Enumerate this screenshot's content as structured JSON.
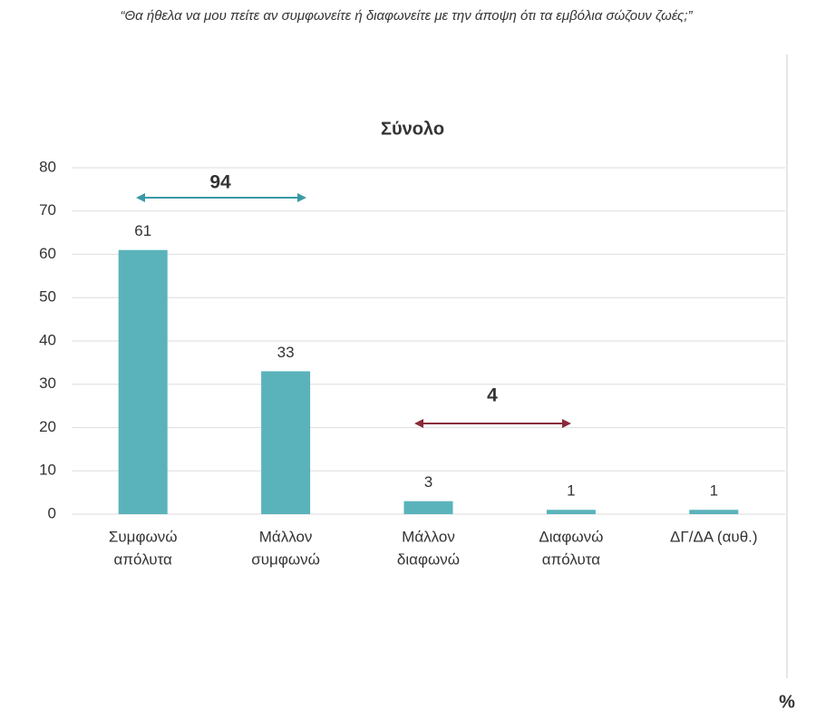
{
  "chart_data": {
    "type": "bar",
    "subtitle": "“Θα ήθελα να μου πείτε αν συμφωνείτε ή διαφωνείτε με την άποψη ότι τα εμβόλια σώζουν ζωές;”",
    "title": "Σύνολο",
    "categories": [
      [
        "Συμφωνώ",
        "απόλυτα"
      ],
      [
        "Μάλλον",
        "συμφωνώ"
      ],
      [
        "Μάλλον",
        "διαφωνώ"
      ],
      [
        "Διαφωνώ",
        "απόλυτα"
      ],
      [
        "ΔΓ/ΔΑ (αυθ.)"
      ]
    ],
    "values": [
      61,
      33,
      3,
      1,
      1
    ],
    "color": "#5ab3bb",
    "ylim": [
      0,
      80
    ],
    "yticks": [
      0,
      10,
      20,
      30,
      40,
      50,
      60,
      70,
      80
    ],
    "grid": true,
    "annotations": [
      {
        "text": "94",
        "color": "#3a9aa5"
      },
      {
        "text": "4",
        "color": "#8a2a3a"
      }
    ],
    "unit": "%"
  }
}
